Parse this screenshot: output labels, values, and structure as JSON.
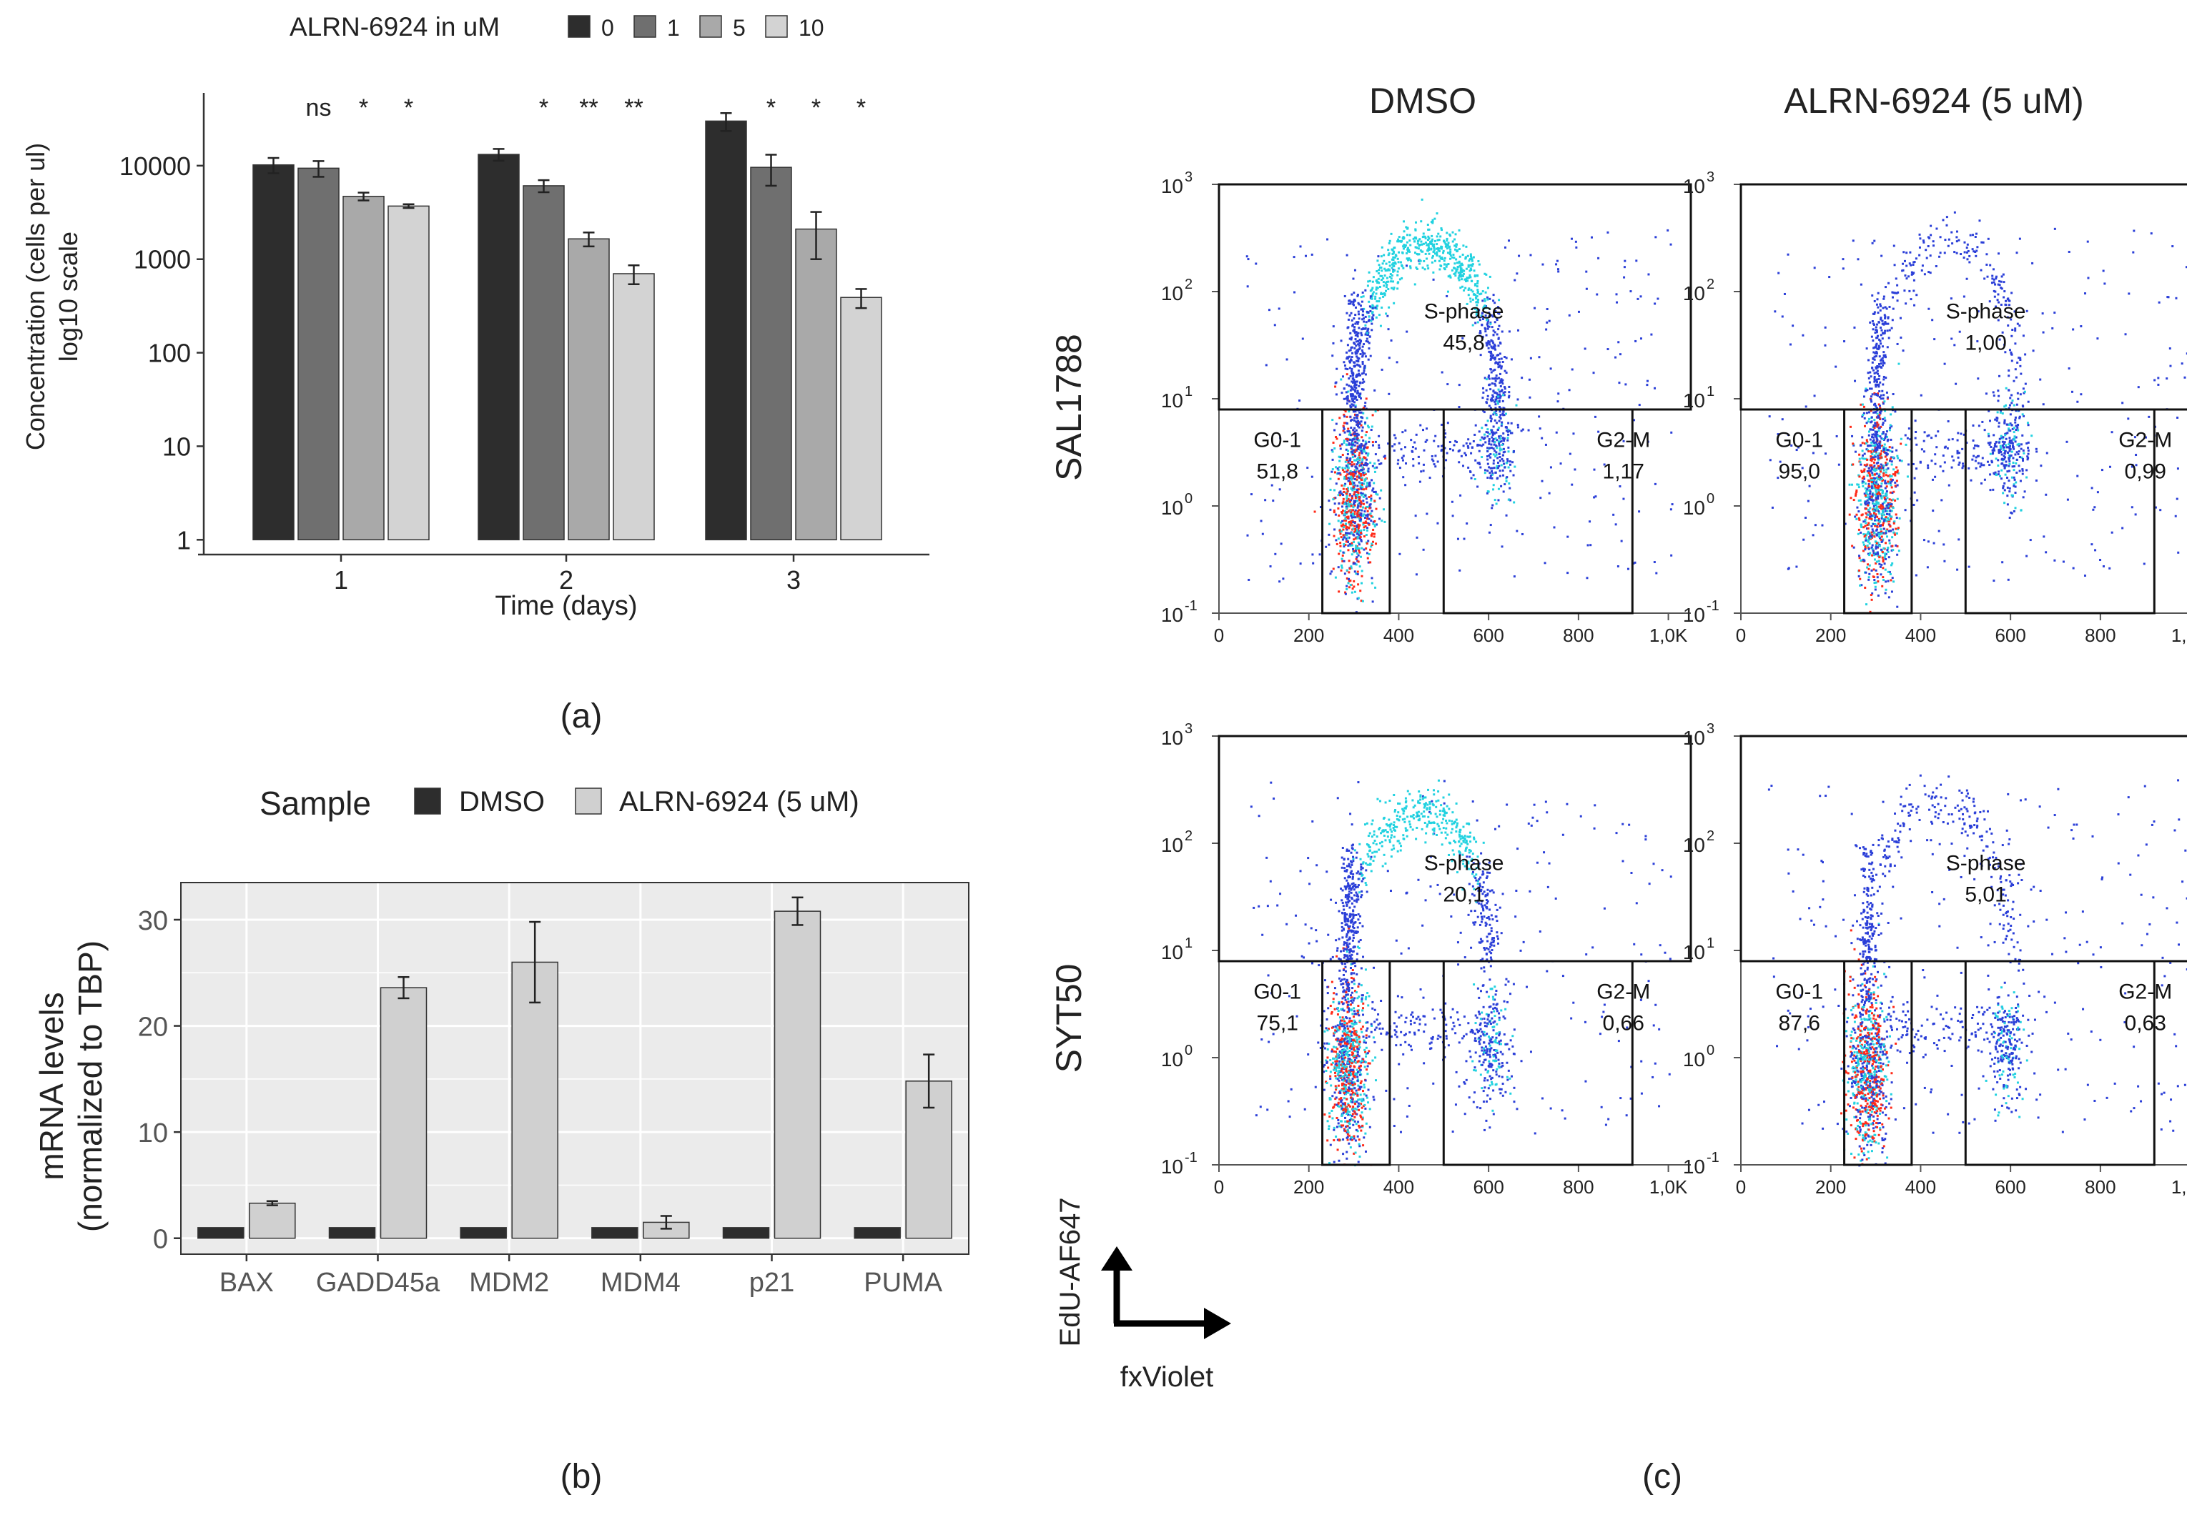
{
  "colors": {
    "dose0": "#2d2d2d",
    "dose1": "#6f6f6f",
    "dose5": "#a9a9a9",
    "dose10": "#d3d3d3",
    "dmso": "#2d2d2d",
    "alrn": "#d0d0d0",
    "panel_bg": "#ebebeb",
    "grid": "#ffffff",
    "flow_low": "#2b3fd8",
    "flow_mid": "#22d2e0",
    "flow_high": "#ff2a18"
  },
  "panel_labels": {
    "a": "(a)",
    "b": "(b)",
    "c": "(c)"
  },
  "chart_data": [
    {
      "id": "a",
      "type": "bar",
      "yscale": "log10",
      "legend_title": "ALRN-6924 in uM",
      "legend_position": "top",
      "categories": [
        "1",
        "2",
        "3"
      ],
      "xlabel": "Time (days)",
      "ylabel_lines": [
        "Concentration (cells per ul)",
        "log10 scale"
      ],
      "yticks": [
        1,
        10,
        100,
        1000,
        10000
      ],
      "ytick_labels": [
        "1",
        "10",
        "100",
        "1000",
        "10000"
      ],
      "ylim": [
        0.8,
        60000
      ],
      "series": [
        {
          "name": "0",
          "values": [
            10200,
            13200,
            30000
          ],
          "errors": [
            1900,
            1900,
            6500
          ],
          "color": "#2d2d2d"
        },
        {
          "name": "1",
          "values": [
            9400,
            6100,
            9600
          ],
          "errors": [
            1800,
            900,
            3500
          ],
          "color": "#6f6f6f"
        },
        {
          "name": "5",
          "values": [
            4700,
            1650,
            2100
          ],
          "errors": [
            450,
            280,
            1100
          ],
          "color": "#a9a9a9"
        },
        {
          "name": "10",
          "values": [
            3700,
            700,
            390
          ],
          "errors": [
            170,
            160,
            90
          ],
          "color": "#d3d3d3"
        }
      ],
      "significance": [
        [
          "ns",
          "*",
          "*"
        ],
        [
          "*",
          "**",
          "**"
        ],
        [
          "*",
          "*",
          "*"
        ]
      ]
    },
    {
      "id": "b",
      "type": "bar",
      "legend_title": "Sample",
      "legend_position": "top",
      "categories": [
        "BAX",
        "GADD45a",
        "MDM2",
        "MDM4",
        "p21",
        "PUMA"
      ],
      "ylabel_lines": [
        "mRNA levels",
        "(normalized to TBP)"
      ],
      "yticks": [
        0,
        10,
        20,
        30
      ],
      "ytick_labels": [
        "0",
        "10",
        "20",
        "30"
      ],
      "ylim": [
        -1.5,
        33.5
      ],
      "series": [
        {
          "name": "DMSO",
          "values": [
            1,
            1,
            1,
            1,
            1,
            1
          ],
          "errors": [
            0,
            0,
            0,
            0,
            0,
            0
          ],
          "color": "#2d2d2d"
        },
        {
          "name": "ALRN-6924 (5 uM)",
          "values": [
            3.3,
            23.6,
            26.0,
            1.5,
            30.8,
            14.8
          ],
          "errors": [
            0.2,
            1.0,
            3.8,
            0.6,
            1.3,
            2.5
          ],
          "color": "#d0d0d0"
        }
      ]
    },
    {
      "id": "c",
      "type": "scatter",
      "column_headers": [
        "DMSO",
        "ALRN-6924 (5 uM)"
      ],
      "row_headers": [
        "SAL1788",
        "SYT50"
      ],
      "xaxis_title": "fxViolet",
      "yaxis_title": "EdU-AF647",
      "xticks": [
        0,
        200,
        400,
        600,
        800,
        1000
      ],
      "xtick_labels": [
        "0",
        "200",
        "400",
        "600",
        "800",
        "1,0K"
      ],
      "xlim": [
        0,
        1050
      ],
      "ylog_range": [
        -1,
        3
      ],
      "ytick_exponents": [
        -1,
        0,
        1,
        2,
        3
      ],
      "ytick_base": "10",
      "gates": {
        "g01": [
          230,
          380,
          -1,
          0.9
        ],
        "g2m": [
          500,
          920,
          -1,
          0.9
        ],
        "s": [
          0,
          1050,
          0.9,
          3
        ]
      },
      "gate_label_words": {
        "s": "S-phase",
        "g01": "G0-1",
        "g2m": "G2-M"
      },
      "plots": [
        {
          "row": 0,
          "col": 0,
          "s_value": "45,8",
          "g01_value": "51,8",
          "g2m_value": "1,17",
          "g01_center": [
            300,
            0.2
          ],
          "g2m_center": [
            615,
            0.6
          ],
          "s_arc_peak_y": 2.45,
          "s_arc_top_density": "high"
        },
        {
          "row": 0,
          "col": 1,
          "s_value": "1,00",
          "g01_value": "95,0",
          "g2m_value": "0,99",
          "g01_center": [
            300,
            0.2
          ],
          "g2m_center": [
            590,
            0.55
          ],
          "s_arc_peak_y": 2.5,
          "s_arc_top_density": "low"
        },
        {
          "row": 1,
          "col": 0,
          "s_value": "20,1",
          "g01_value": "75,1",
          "g2m_value": "0,66",
          "g01_center": [
            285,
            0.0
          ],
          "g2m_center": [
            600,
            0.1
          ],
          "s_arc_peak_y": 2.3,
          "s_arc_top_density": "medium"
        },
        {
          "row": 1,
          "col": 1,
          "s_value": "5,01",
          "g01_value": "87,6",
          "g2m_value": "0,63",
          "g01_center": [
            280,
            0.0
          ],
          "g2m_center": [
            590,
            0.1
          ],
          "s_arc_peak_y": 2.4,
          "s_arc_top_density": "low"
        }
      ]
    }
  ]
}
